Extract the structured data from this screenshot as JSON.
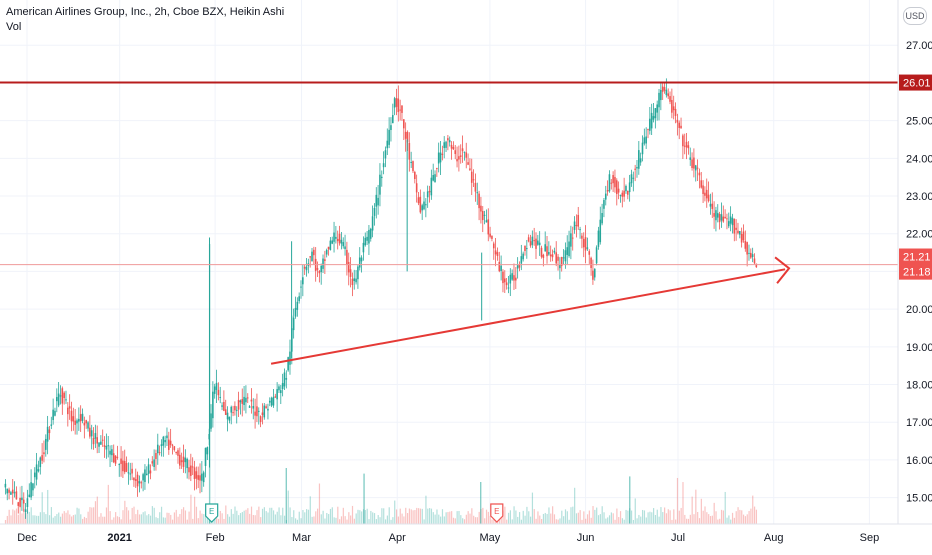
{
  "header": {
    "title": "American Airlines Group, Inc., 2h, Cboe BZX, Heikin Ashi",
    "volume_label": "Vol",
    "currency": "USD"
  },
  "chart_data": {
    "type": "candlestick",
    "title": "American Airlines Group, Inc., 2h, Cboe BZX, Heikin Ashi",
    "ylim": [
      14.3,
      28.2
    ],
    "y_ticks": [
      "15.00",
      "16.00",
      "17.00",
      "18.00",
      "19.00",
      "20.00",
      "21.00",
      "22.00",
      "23.00",
      "24.00",
      "25.00",
      "26.00",
      "27.00"
    ],
    "x_ticks": [
      {
        "label": "Dec",
        "week": 0
      },
      {
        "label": "2021",
        "week": 4.29
      },
      {
        "label": "Feb",
        "week": 8.71
      },
      {
        "label": "Mar",
        "week": 12.71
      },
      {
        "label": "Apr",
        "week": 17.14
      },
      {
        "label": "May",
        "week": 21.43
      },
      {
        "label": "Jun",
        "week": 25.86
      },
      {
        "label": "Jul",
        "week": 30.14
      },
      {
        "label": "Aug",
        "week": 34.57
      },
      {
        "label": "Sep",
        "week": 39.0
      }
    ],
    "price_path": [
      [
        -1.0,
        15.3
      ],
      [
        -0.4,
        15.0
      ],
      [
        0.0,
        14.7
      ],
      [
        0.3,
        15.4
      ],
      [
        0.7,
        16.0
      ],
      [
        1.0,
        16.6
      ],
      [
        1.3,
        17.3
      ],
      [
        1.6,
        17.8
      ],
      [
        1.9,
        17.5
      ],
      [
        2.2,
        17.0
      ],
      [
        2.6,
        17.2
      ],
      [
        3.0,
        16.7
      ],
      [
        3.5,
        16.4
      ],
      [
        4.0,
        16.2
      ],
      [
        4.4,
        15.9
      ],
      [
        4.9,
        15.6
      ],
      [
        5.3,
        15.4
      ],
      [
        5.7,
        15.7
      ],
      [
        6.1,
        16.2
      ],
      [
        6.5,
        16.5
      ],
      [
        6.9,
        16.2
      ],
      [
        7.4,
        15.9
      ],
      [
        7.9,
        15.6
      ],
      [
        8.2,
        15.5
      ],
      [
        8.5,
        16.8
      ],
      [
        8.8,
        18.1
      ],
      [
        9.0,
        17.6
      ],
      [
        9.3,
        17.1
      ],
      [
        9.7,
        17.4
      ],
      [
        10.1,
        17.6
      ],
      [
        10.5,
        17.4
      ],
      [
        10.9,
        17.2
      ],
      [
        11.3,
        17.5
      ],
      [
        11.7,
        17.8
      ],
      [
        12.1,
        18.3
      ],
      [
        12.5,
        20.0
      ],
      [
        12.9,
        21.1
      ],
      [
        13.3,
        21.5
      ],
      [
        13.6,
        20.8
      ],
      [
        14.0,
        21.6
      ],
      [
        14.4,
        22.0
      ],
      [
        14.8,
        21.5
      ],
      [
        15.2,
        20.6
      ],
      [
        15.6,
        21.5
      ],
      [
        16.0,
        22.1
      ],
      [
        16.4,
        23.3
      ],
      [
        16.8,
        24.6
      ],
      [
        17.1,
        25.6
      ],
      [
        17.4,
        25.2
      ],
      [
        17.7,
        24.3
      ],
      [
        18.0,
        23.4
      ],
      [
        18.3,
        22.6
      ],
      [
        18.7,
        23.1
      ],
      [
        19.1,
        23.9
      ],
      [
        19.5,
        24.6
      ],
      [
        19.9,
        24.0
      ],
      [
        20.3,
        24.2
      ],
      [
        20.7,
        23.4
      ],
      [
        21.1,
        22.7
      ],
      [
        21.5,
        22.0
      ],
      [
        21.9,
        21.2
      ],
      [
        22.3,
        20.6
      ],
      [
        22.7,
        20.9
      ],
      [
        23.1,
        21.7
      ],
      [
        23.5,
        21.9
      ],
      [
        23.9,
        21.5
      ],
      [
        24.3,
        21.6
      ],
      [
        24.7,
        21.2
      ],
      [
        25.1,
        21.5
      ],
      [
        25.5,
        22.4
      ],
      [
        25.9,
        21.7
      ],
      [
        26.3,
        20.9
      ],
      [
        26.7,
        22.6
      ],
      [
        27.1,
        23.6
      ],
      [
        27.5,
        23.0
      ],
      [
        27.9,
        23.2
      ],
      [
        28.3,
        23.8
      ],
      [
        28.7,
        24.6
      ],
      [
        29.1,
        25.2
      ],
      [
        29.5,
        25.9
      ],
      [
        29.9,
        25.4
      ],
      [
        30.3,
        24.7
      ],
      [
        30.7,
        24.1
      ],
      [
        31.1,
        23.6
      ],
      [
        31.5,
        23.0
      ],
      [
        31.9,
        22.5
      ],
      [
        32.3,
        22.3
      ],
      [
        32.7,
        22.3
      ],
      [
        33.1,
        22.0
      ],
      [
        33.5,
        21.5
      ],
      [
        33.8,
        21.15
      ]
    ],
    "volume_spikes": [
      {
        "week": 8.45,
        "v": 1.0
      },
      {
        "week": 12.0,
        "v": 0.2
      },
      {
        "week": 15.6,
        "v": 0.18
      },
      {
        "week": 21.0,
        "v": 0.15
      },
      {
        "week": 27.9,
        "v": 0.17
      }
    ],
    "earnings_markers": [
      {
        "week": 8.55,
        "label": "E",
        "type": "past"
      },
      {
        "week": 21.75,
        "label": "E",
        "type": "upcoming"
      }
    ],
    "resistance_line": {
      "price": 26.01,
      "label": "26.01",
      "color": "#b71c1c"
    },
    "price_labels": [
      {
        "price": 21.21,
        "label": "21.21",
        "color": "#ef5350"
      },
      {
        "price": 21.18,
        "label": "21.18",
        "color": "#ef5350"
      }
    ],
    "trendline": {
      "start": {
        "week": 11.3,
        "price": 18.55
      },
      "end": {
        "week": 33.8,
        "price": 20.95
      },
      "color": "#e53935"
    },
    "colors": {
      "up": "#26a69a",
      "down": "#ef5350",
      "grid": "#f0f3fa",
      "axis_text": "#131722"
    },
    "grid": true
  }
}
